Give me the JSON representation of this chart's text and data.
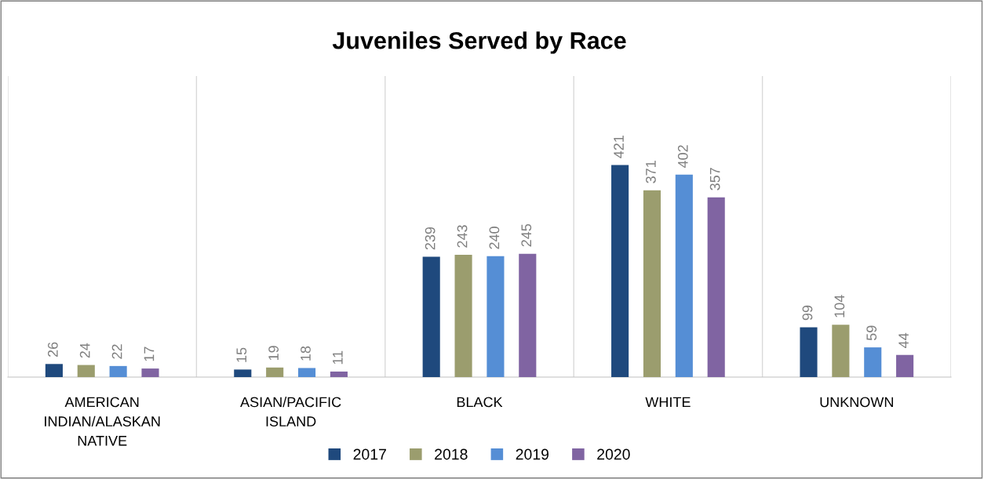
{
  "chart_data": {
    "type": "bar",
    "title": "Juveniles Served by Race",
    "categories": [
      "AMERICAN\nINDIAN/ALASKAN\nNATIVE",
      "ASIAN/PACIFIC\nISLAND",
      "BLACK",
      "WHITE",
      "UNKNOWN"
    ],
    "series": [
      {
        "name": "2017",
        "color": "#1f497d",
        "values": [
          26,
          15,
          239,
          421,
          99
        ]
      },
      {
        "name": "2018",
        "color": "#9b9d6e",
        "values": [
          24,
          19,
          243,
          371,
          104
        ]
      },
      {
        "name": "2019",
        "color": "#558ed5",
        "values": [
          22,
          18,
          240,
          402,
          59
        ]
      },
      {
        "name": "2020",
        "color": "#8064a2",
        "values": [
          17,
          11,
          245,
          357,
          44
        ]
      }
    ],
    "data_labels": true,
    "grid": "x",
    "legend": "bottom"
  }
}
